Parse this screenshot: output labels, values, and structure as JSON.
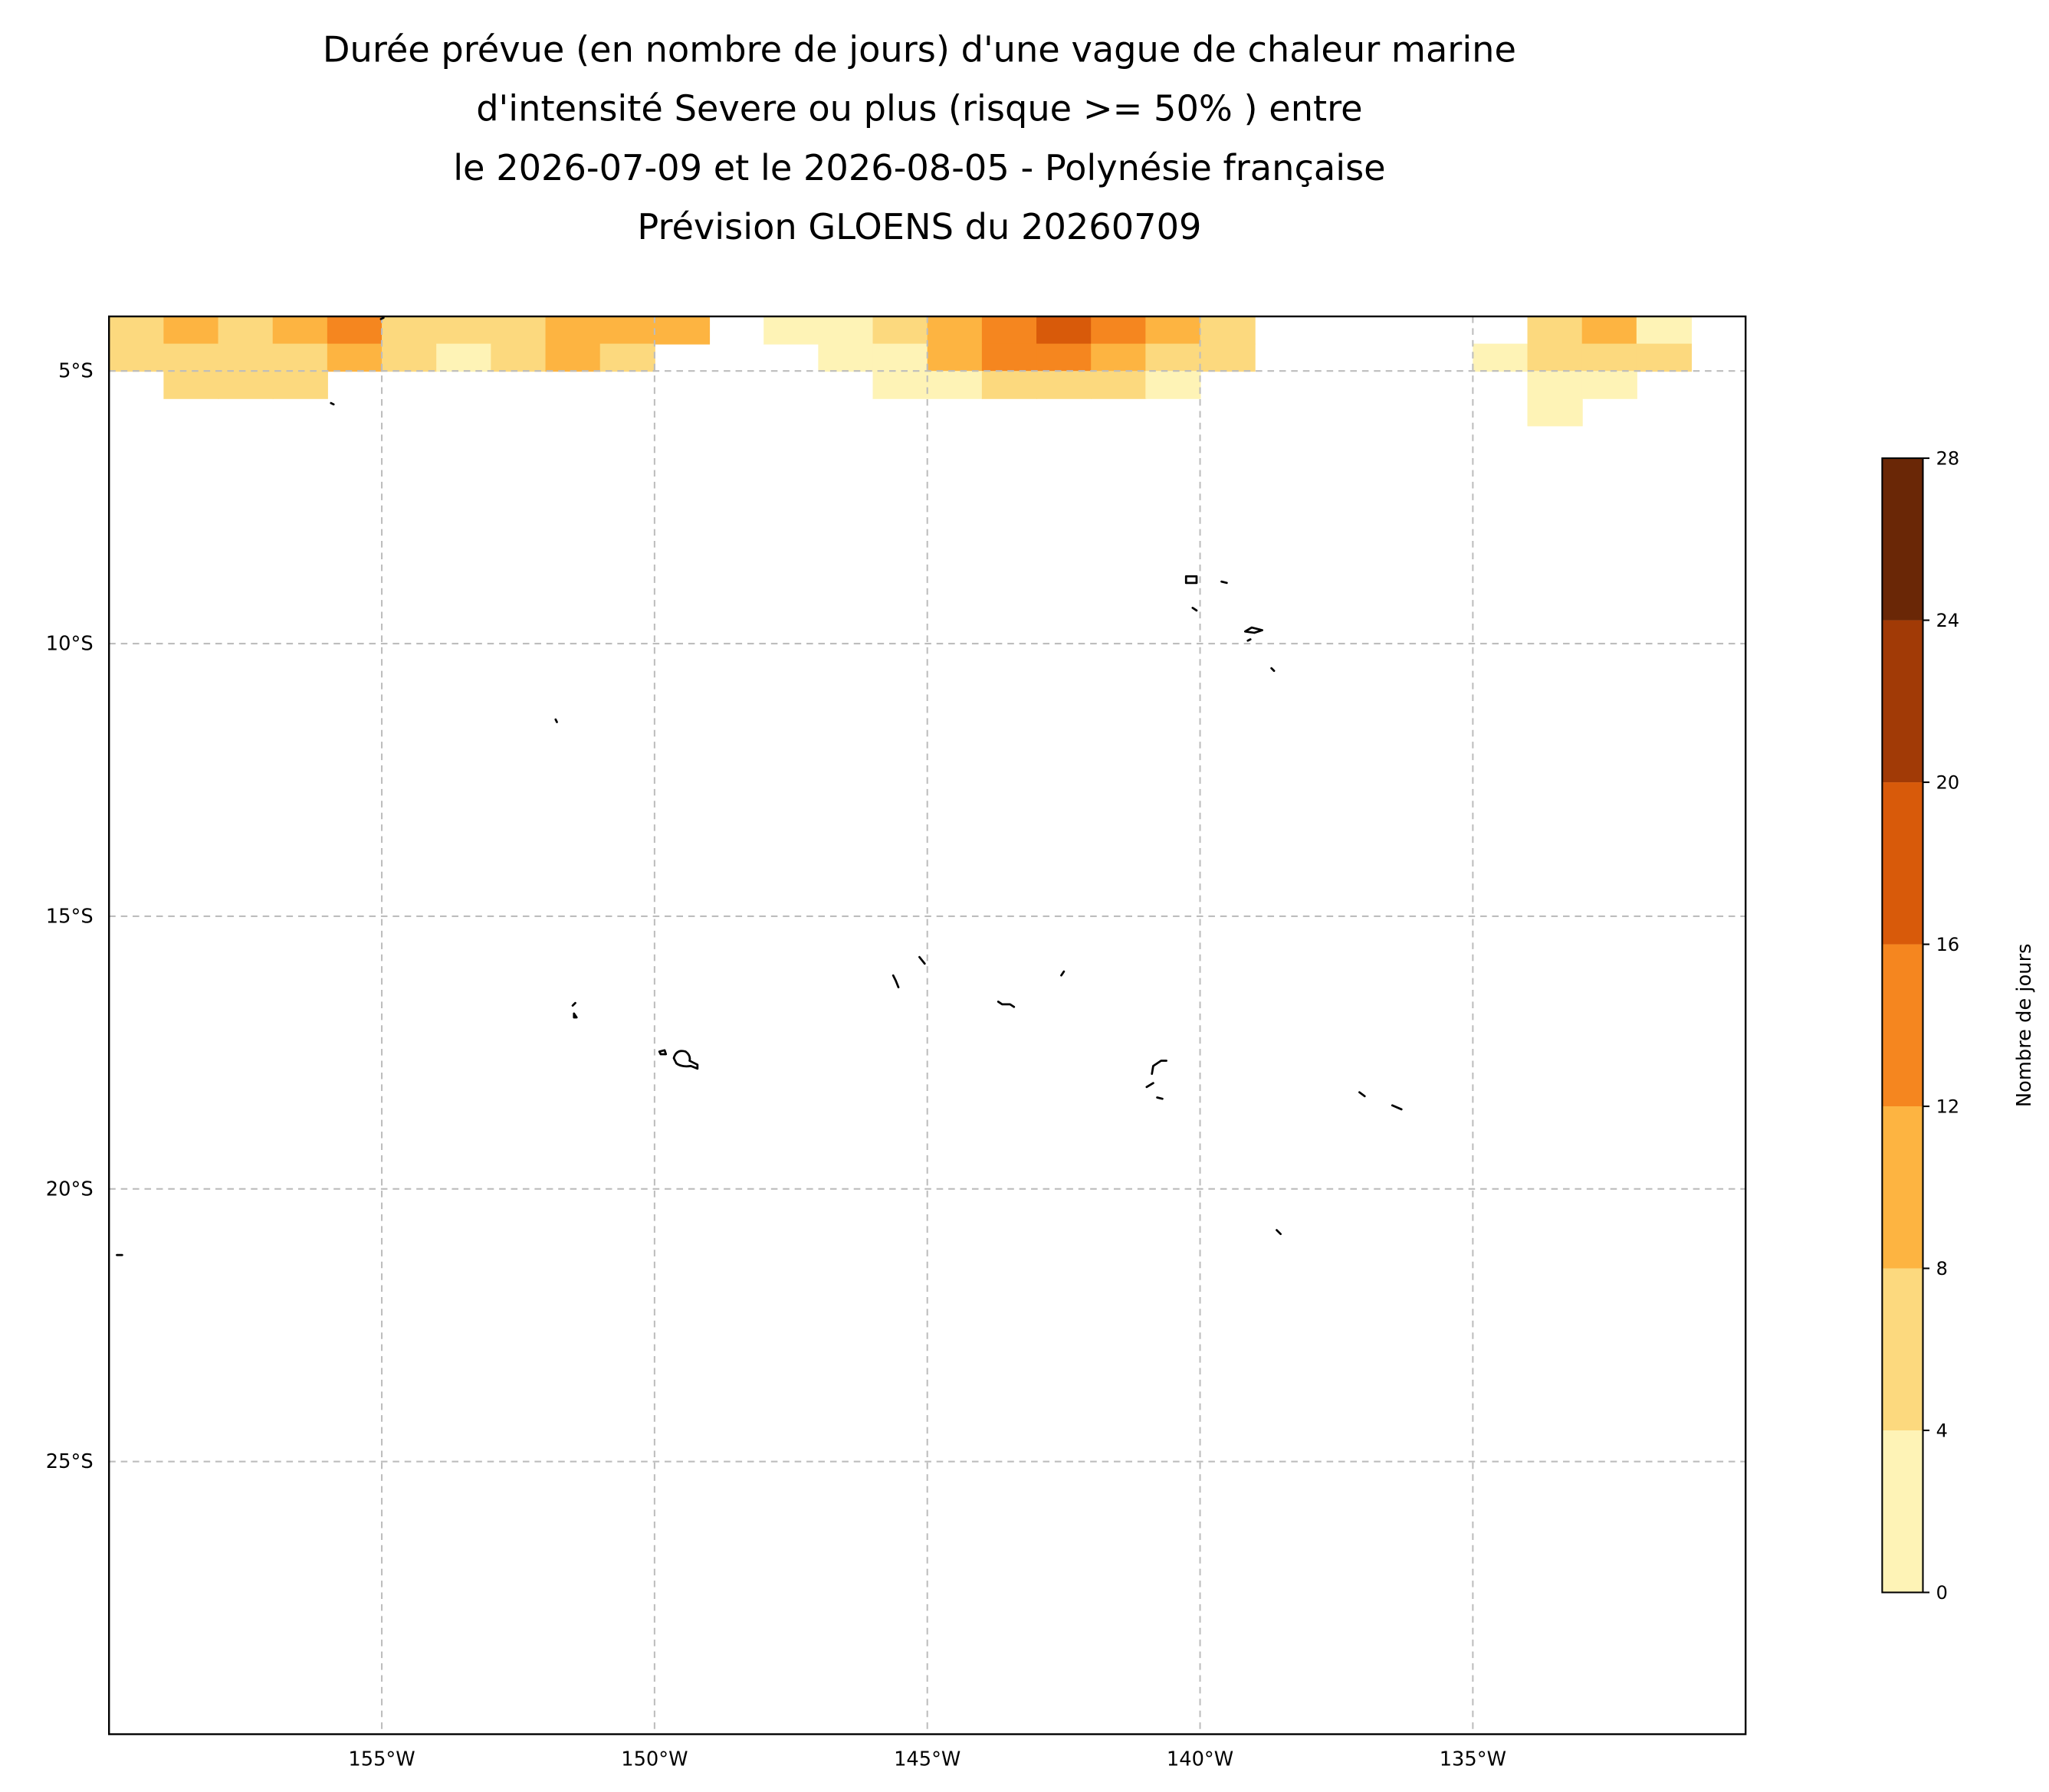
{
  "chart_data": {
    "type": "contourf_map",
    "title": [
      "Durée prévue (en nombre de jours) d'une vague de chaleur marine",
      "d'intensité Severe ou plus (risque >= 50% ) entre",
      "le 2026-07-09 et le 2026-08-05 - Polynésie française",
      "Prévision GLOENS du 20260709"
    ],
    "xlim": [
      -160,
      -130
    ],
    "ylim": [
      -30,
      -4
    ],
    "xticks": [
      {
        "value": -155,
        "label": "155°W"
      },
      {
        "value": -150,
        "label": "150°W"
      },
      {
        "value": -145,
        "label": "145°W"
      },
      {
        "value": -140,
        "label": "140°W"
      },
      {
        "value": -135,
        "label": "135°W"
      }
    ],
    "yticks": [
      {
        "value": -5,
        "label": "5°S"
      },
      {
        "value": -10,
        "label": "10°S"
      },
      {
        "value": -15,
        "label": "15°S"
      },
      {
        "value": -20,
        "label": "20°S"
      },
      {
        "value": -25,
        "label": "25°S"
      }
    ],
    "grid": true,
    "field": {
      "lon": [
        -159.5,
        -158.5,
        -157.5,
        -156.5,
        -155.5,
        -154.5,
        -153.5,
        -152.5,
        -151.5,
        -150.5,
        -149.5,
        -148.5,
        -147.5,
        -146.5,
        -145.5,
        -144.5,
        -143.5,
        -142.5,
        -141.5,
        -140.5,
        -139.5,
        -138.5,
        -137.5,
        -136.5,
        -135.5,
        -134.5,
        -133.5,
        -132.5,
        -131.5,
        -130.5
      ],
      "lat": [
        -4.25,
        -4.75,
        -5.25,
        -5.75
      ],
      "days": [
        [
          6,
          10,
          6,
          10,
          12,
          6,
          6,
          6,
          10,
          10,
          10,
          null,
          2,
          2,
          6,
          10,
          14,
          18,
          14,
          10,
          6,
          null,
          null,
          null,
          null,
          null,
          6,
          10,
          2,
          null
        ],
        [
          6,
          6,
          6,
          6,
          10,
          6,
          2,
          6,
          10,
          6,
          null,
          null,
          null,
          2,
          2,
          10,
          14,
          14,
          10,
          6,
          6,
          null,
          null,
          null,
          null,
          2,
          6,
          6,
          6,
          null
        ],
        [
          null,
          6,
          6,
          6,
          null,
          null,
          null,
          null,
          null,
          null,
          null,
          null,
          null,
          null,
          2,
          2,
          6,
          6,
          6,
          2,
          null,
          null,
          null,
          null,
          null,
          null,
          2,
          2,
          null,
          null
        ],
        [
          null,
          null,
          null,
          null,
          null,
          null,
          null,
          null,
          null,
          null,
          null,
          null,
          null,
          null,
          null,
          null,
          null,
          null,
          null,
          null,
          null,
          null,
          null,
          null,
          null,
          null,
          2,
          null,
          null,
          null
        ]
      ]
    },
    "colorbar": {
      "label": "Nombre de jours",
      "levels": [
        0,
        4,
        8,
        12,
        16,
        20,
        24,
        28
      ],
      "colors": [
        "#fef3b6",
        "#fcd97e",
        "#fdb441",
        "#f5861f",
        "#d85a0a",
        "#a13a06",
        "#6a2706"
      ]
    }
  }
}
